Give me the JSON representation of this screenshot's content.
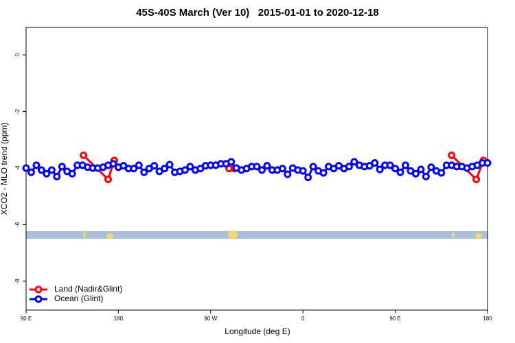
{
  "chart_data": {
    "type": "line",
    "title": "45S-40S March (Ver 10)   2015-01-01 to 2020-12-18",
    "x_label": "Longitude (deg E)",
    "y_label": "XCO2 - MLO trend (ppm)",
    "xlim": [
      90,
      540
    ],
    "ylim": [
      -9.02,
      0.97
    ],
    "xticks": [
      {
        "value": 90,
        "label": "90 E"
      },
      180,
      {
        "value": 270,
        "label": "90 W"
      },
      {
        "value": 360,
        "label": "0"
      },
      {
        "value": 450,
        "label": "90 E"
      },
      {
        "value": 540,
        "label": "180"
      }
    ],
    "yticks": [
      0,
      -2,
      -4,
      -6,
      -8
    ],
    "legend": "bottom-left",
    "series": [
      {
        "name": "Land (Nadir&Glint)",
        "color": "#ff0000",
        "x": [
          146,
          170,
          176,
          232,
          288,
          293,
          399,
          505,
          529,
          536
        ],
        "values": [
          -3.55,
          -4.4,
          -3.73,
          null,
          -4.02,
          -4.02,
          null,
          -3.55,
          -4.4,
          -3.73
        ]
      },
      {
        "name": "Ocean (Glint)",
        "color": "#0000ff",
        "x": [
          90,
          95,
          100,
          105,
          110,
          115,
          120,
          125,
          130,
          135,
          140,
          145,
          150,
          155,
          160,
          165,
          170,
          175,
          180,
          185,
          190,
          195,
          200,
          205,
          210,
          215,
          220,
          225,
          230,
          235,
          240,
          245,
          250,
          255,
          260,
          265,
          270,
          275,
          280,
          285,
          290,
          295,
          300,
          305,
          310,
          315,
          320,
          325,
          330,
          335,
          340,
          345,
          350,
          355,
          360,
          365,
          370,
          375,
          380,
          385,
          390,
          395,
          400,
          405,
          410,
          415,
          420,
          425,
          430,
          435,
          440,
          445,
          450,
          455,
          460,
          465,
          470,
          475,
          480,
          485,
          490,
          495,
          500,
          505,
          510,
          515,
          520,
          525,
          530,
          535,
          540
        ],
        "values": [
          -4.0,
          -4.15,
          -3.9,
          -4.07,
          -4.2,
          -4.07,
          -4.3,
          -3.95,
          -4.12,
          -4.2,
          -3.9,
          -3.9,
          -3.97,
          -4.0,
          -4.0,
          -3.97,
          -3.9,
          -3.85,
          -3.97,
          -3.92,
          -4.02,
          -4.02,
          -3.9,
          -4.15,
          -4.02,
          -3.92,
          -4.12,
          -4.02,
          -3.88,
          -4.15,
          -4.12,
          -4.07,
          -3.95,
          -4.07,
          -4.02,
          -3.92,
          -3.9,
          -3.9,
          -3.85,
          -3.85,
          -3.78,
          -4.0,
          -4.07,
          -4.02,
          -3.95,
          -3.95,
          -4.07,
          -3.92,
          -4.07,
          -4.07,
          -4.02,
          -4.22,
          -4.0,
          -4.07,
          -4.1,
          -4.33,
          -3.95,
          -4.1,
          -4.17,
          -3.95,
          -4.02,
          -3.92,
          -4.02,
          -3.95,
          -3.78,
          -3.9,
          -3.95,
          -3.92,
          -3.82,
          -4.05,
          -3.9,
          -3.9,
          -4.02,
          -4.15,
          -3.9,
          -4.1,
          -4.2,
          -4.05,
          -4.3,
          -3.97,
          -4.1,
          -4.17,
          -3.9,
          -3.9,
          -3.95,
          -3.95,
          -4.0,
          -3.95,
          -3.9,
          -3.82,
          -3.82
        ]
      }
    ]
  }
}
